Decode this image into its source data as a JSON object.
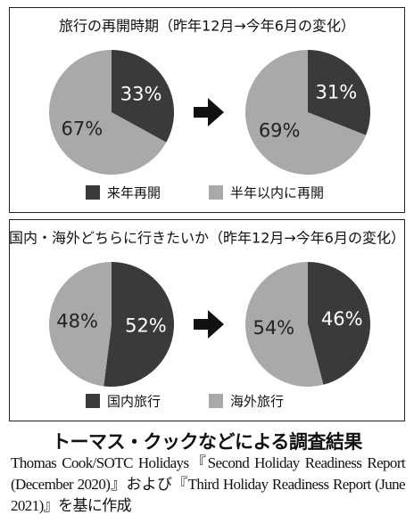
{
  "chart_data": [
    {
      "type": "pie",
      "title": "旅行の再開時期（昨年12月→今年6月の変化）",
      "categories": [
        "来年再開",
        "半年以内に再開"
      ],
      "colors": [
        "#3a3a3a",
        "#a9a9a9"
      ],
      "pies": [
        {
          "values": [
            33,
            67
          ],
          "value_labels": [
            "33%",
            "67%"
          ]
        },
        {
          "values": [
            31,
            69
          ],
          "value_labels": [
            "31%",
            "69%"
          ]
        }
      ]
    },
    {
      "type": "pie",
      "title": "国内・海外どちらに行きたいか（昨年12月→今年6月の変化）",
      "categories": [
        "国内旅行",
        "海外旅行"
      ],
      "colors": [
        "#3a3a3a",
        "#a9a9a9"
      ],
      "pies": [
        {
          "values": [
            52,
            48
          ],
          "value_labels": [
            "52%",
            "48%"
          ]
        },
        {
          "values": [
            46,
            54
          ],
          "value_labels": [
            "46%",
            "54%"
          ]
        }
      ]
    }
  ],
  "caption": {
    "title": "トーマス・クックなどによる調査結果",
    "source": "Thomas Cook/SOTC Holidays『Second Holiday Readiness Report (December 2020)』および『Third Holiday Readiness Report (June 2021)』を基に作成"
  }
}
